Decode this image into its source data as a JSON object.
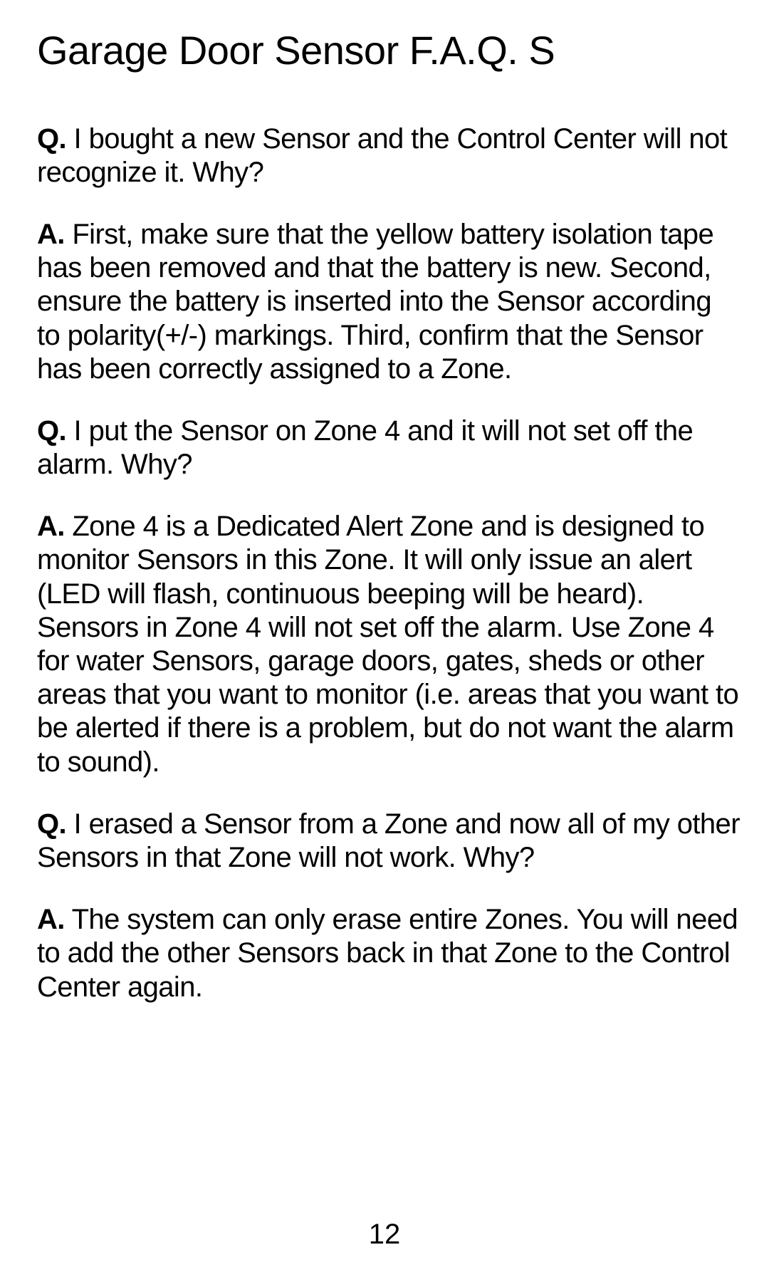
{
  "title": "Garage Door Sensor F.A.Q. S",
  "faq": [
    {
      "q_label": "Q.",
      "q_text": " I bought a new Sensor and the Control Center will not recognize it. Why?",
      "a_label": "A.",
      "a_text": " First, make sure that the yellow battery isolation tape has been removed and that the battery is new. Second, ensure the battery is inserted into the Sensor according to polarity(+/-) markings.  Third, confirm that the Sensor has been correctly assigned to a Zone."
    },
    {
      "q_label": "Q.",
      "q_text": " I put the Sensor on Zone 4 and it will not set off the alarm. Why?",
      "a_label": "A.",
      "a_text": " Zone 4 is a Dedicated Alert Zone and is designed to monitor Sensors in this Zone.  It will only issue an alert (LED will flash, continuous beeping will be heard). Sensors in Zone 4 will not set off the alarm.  Use Zone 4 for water Sensors, garage doors, gates, sheds or other areas that you want to monitor (i.e. areas that you want to be alerted if there is a problem, but do not want the alarm to sound)."
    },
    {
      "q_label": "Q.",
      "q_text": " I erased a Sensor from a Zone and now all of my other Sensors in that Zone will not work.  Why?",
      "a_label": "A.",
      "a_text": " The system can only erase entire Zones.  You will need to add the other Sensors back in that Zone to the Control Center again."
    }
  ],
  "page_number": "12"
}
